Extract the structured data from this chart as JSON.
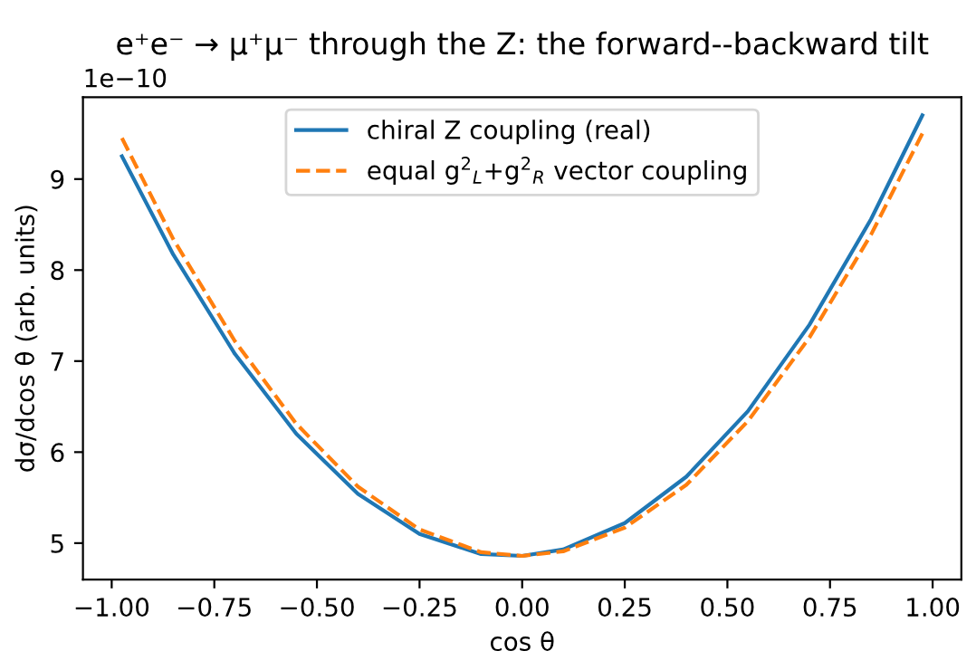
{
  "chart_data": {
    "type": "line",
    "title": "e⁺e⁻ → μ⁺μ⁻ through the Z: the forward--backward tilt",
    "xlabel": "cos θ",
    "ylabel": "dσ/dcos θ (arb. units)",
    "annotations": [
      "1e−10"
    ],
    "x": [
      -0.975,
      -0.85,
      -0.7,
      -0.55,
      -0.4,
      -0.25,
      -0.1,
      0,
      0.1,
      0.25,
      0.4,
      0.55,
      0.7,
      0.85,
      0.975
    ],
    "series": [
      {
        "name": "chiral Z coupling (real)",
        "color": "#1f77b4",
        "line_style": "solid",
        "values": [
          9.25,
          8.17,
          7.08,
          6.2,
          5.54,
          5.1,
          4.88,
          4.86,
          4.93,
          5.22,
          5.73,
          6.45,
          7.4,
          8.56,
          9.7
        ]
      },
      {
        "name": "equal g$^{2}$$_{L}$+g$^{2}$$_{R}$ vector coupling",
        "color": "#ff7f0e",
        "line_style": "dashed",
        "values": [
          9.45,
          8.34,
          7.22,
          6.31,
          5.62,
          5.15,
          4.9,
          4.86,
          4.91,
          5.17,
          5.64,
          6.34,
          7.26,
          8.39,
          9.5
        ]
      }
    ],
    "xlim": [
      -1.07,
      1.07
    ],
    "ylim": [
      4.6,
      9.9
    ],
    "xticks": [
      {
        "value": -1,
        "label": "−1.00"
      },
      {
        "value": -0.75,
        "label": "−0.75"
      },
      {
        "value": -0.5,
        "label": "−0.50"
      },
      {
        "value": -0.25,
        "label": "−0.25"
      },
      {
        "value": 0,
        "label": "0.00"
      },
      {
        "value": 0.25,
        "label": "0.25"
      },
      {
        "value": 0.5,
        "label": "0.50"
      },
      {
        "value": 0.75,
        "label": "0.75"
      },
      {
        "value": 1,
        "label": "1.00"
      }
    ],
    "yticks": [
      5,
      6,
      7,
      8,
      9
    ],
    "legend": "top",
    "grid": false,
    "marker": "none"
  }
}
